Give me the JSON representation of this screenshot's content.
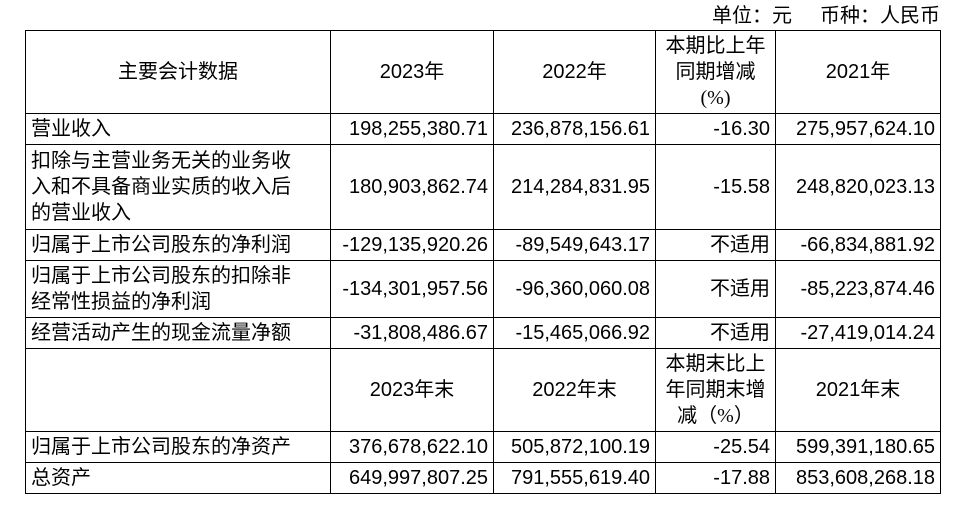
{
  "note": {
    "unit": "单位：元",
    "currency": "币种：人民币"
  },
  "table": {
    "section1": {
      "header": {
        "metric": "主要会计数据",
        "y2023": "2023年",
        "y2022": "2022年",
        "change": "本期比上年\n同期增减\n(%)",
        "y2021": "2021年"
      },
      "rows": [
        {
          "label": "营业收入",
          "y2023": "198,255,380.71",
          "y2022": "236,878,156.61",
          "change": "-16.30",
          "y2021": "275,957,624.10"
        },
        {
          "label": "扣除与主营业务无关的业务收\n入和不具备商业实质的收入后\n的营业收入",
          "y2023": "180,903,862.74",
          "y2022": "214,284,831.95",
          "change": "-15.58",
          "y2021": "248,820,023.13"
        },
        {
          "label": "归属于上市公司股东的净利润",
          "y2023": "-129,135,920.26",
          "y2022": "-89,549,643.17",
          "change": "不适用",
          "y2021": "-66,834,881.92"
        },
        {
          "label": "归属于上市公司股东的扣除非\n经常性损益的净利润",
          "y2023": "-134,301,957.56",
          "y2022": "-96,360,060.08",
          "change": "不适用",
          "y2021": "-85,223,874.46"
        },
        {
          "label": "经营活动产生的现金流量净额",
          "y2023": "-31,808,486.67",
          "y2022": "-15,465,066.92",
          "change": "不适用",
          "y2021": "-27,419,014.24"
        }
      ]
    },
    "section2": {
      "header": {
        "metric": "",
        "y2023": "2023年末",
        "y2022": "2022年末",
        "change": "本期末比上\n年同期末增\n减（%）",
        "y2021": "2021年末"
      },
      "rows": [
        {
          "label": "归属于上市公司股东的净资产",
          "y2023": "376,678,622.10",
          "y2022": "505,872,100.19",
          "change": "-25.54",
          "y2021": "599,391,180.65"
        },
        {
          "label": "总资产",
          "y2023": "649,997,807.25",
          "y2022": "791,555,619.40",
          "change": "-17.88",
          "y2021": "853,608,268.18"
        }
      ]
    }
  }
}
